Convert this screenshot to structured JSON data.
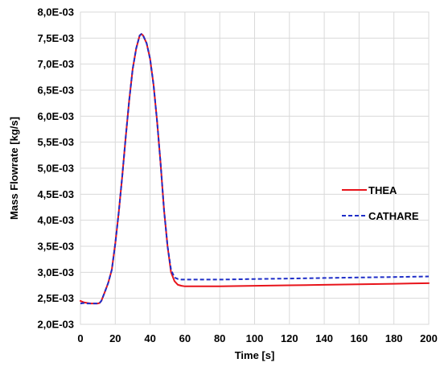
{
  "chart_data": {
    "type": "line",
    "xlabel": "Time [s]",
    "ylabel": "Mass Flowrate [kg/s]",
    "xlim": [
      0,
      200
    ],
    "ylim": [
      0.002,
      0.008
    ],
    "xticks": [
      0,
      20,
      40,
      60,
      80,
      100,
      120,
      140,
      160,
      180,
      200
    ],
    "yticks": [
      0.002,
      0.0025,
      0.003,
      0.0035,
      0.004,
      0.0045,
      0.005,
      0.0055,
      0.006,
      0.0065,
      0.007,
      0.0075,
      0.008
    ],
    "xtick_labels": [
      "0",
      "20",
      "40",
      "60",
      "80",
      "100",
      "120",
      "140",
      "160",
      "180",
      "200"
    ],
    "ytick_labels": [
      "2,0E-03",
      "2,5E-03",
      "3,0E-03",
      "3,5E-03",
      "4,0E-03",
      "4,5E-03",
      "5,0E-03",
      "5,5E-03",
      "6,0E-03",
      "6,5E-03",
      "7,0E-03",
      "7,5E-03",
      "8,0E-03"
    ],
    "grid": "both",
    "legend_position": "right",
    "series": [
      {
        "name": "THEA",
        "color": "#e8141b",
        "style": "solid",
        "x": [
          0,
          2,
          4,
          6,
          8,
          10,
          11,
          12,
          14,
          16,
          18,
          20,
          22,
          24,
          26,
          28,
          30,
          32,
          34,
          35,
          36,
          38,
          40,
          42,
          44,
          46,
          48,
          50,
          52,
          54,
          56,
          58,
          60,
          65,
          70,
          80,
          100,
          120,
          140,
          160,
          180,
          200
        ],
        "y": [
          0.00245,
          0.00242,
          0.00241,
          0.0024,
          0.0024,
          0.0024,
          0.00241,
          0.00245,
          0.00262,
          0.0028,
          0.00305,
          0.00355,
          0.00415,
          0.00485,
          0.0056,
          0.0063,
          0.0069,
          0.0073,
          0.00755,
          0.00758,
          0.00755,
          0.0074,
          0.0071,
          0.0066,
          0.0059,
          0.0051,
          0.0042,
          0.0035,
          0.003,
          0.00283,
          0.00276,
          0.00274,
          0.00273,
          0.00273,
          0.00273,
          0.00273,
          0.00274,
          0.00275,
          0.00276,
          0.00277,
          0.00278,
          0.00279
        ]
      },
      {
        "name": "CATHARE",
        "color": "#1f2ec8",
        "style": "dashed",
        "x": [
          0,
          2,
          4,
          6,
          8,
          10,
          11,
          12,
          14,
          16,
          18,
          20,
          22,
          24,
          26,
          28,
          30,
          32,
          34,
          35,
          36,
          38,
          40,
          42,
          44,
          46,
          48,
          50,
          52,
          54,
          56,
          58,
          60,
          65,
          70,
          80,
          100,
          120,
          140,
          160,
          180,
          200
        ],
        "y": [
          0.0024,
          0.00241,
          0.0024,
          0.0024,
          0.0024,
          0.0024,
          0.00241,
          0.00245,
          0.00262,
          0.0028,
          0.00305,
          0.00355,
          0.00415,
          0.00485,
          0.0056,
          0.0063,
          0.0069,
          0.0073,
          0.00755,
          0.00758,
          0.00755,
          0.0074,
          0.0071,
          0.0066,
          0.0059,
          0.0051,
          0.0042,
          0.0035,
          0.00305,
          0.0029,
          0.00287,
          0.00286,
          0.00286,
          0.00286,
          0.00286,
          0.00286,
          0.00287,
          0.00288,
          0.00289,
          0.0029,
          0.00291,
          0.00292
        ]
      }
    ]
  }
}
